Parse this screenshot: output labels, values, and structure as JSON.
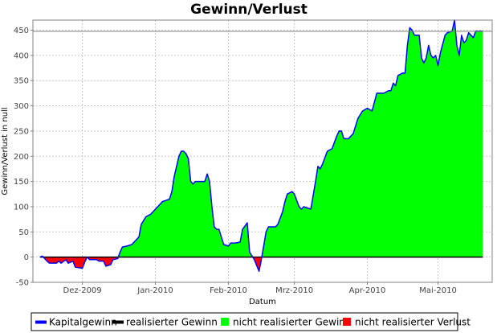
{
  "chart_data": {
    "type": "area",
    "title": "Gewinn/Verlust",
    "xlabel": "Datum",
    "ylabel": "Gewinn/Verlust in null",
    "ylim": [
      -50,
      470
    ],
    "yticks": [
      -50,
      0,
      50,
      100,
      150,
      200,
      250,
      300,
      350,
      400,
      450
    ],
    "xlim": [
      "2009-11-10",
      "2010-05-24"
    ],
    "xticks": [
      {
        "label": "Dez-2009",
        "date": "2009-12-01"
      },
      {
        "label": "Jan-2010",
        "date": "2010-01-01"
      },
      {
        "label": "Feb-2010",
        "date": "2010-02-01"
      },
      {
        "label": "Mrz-2010",
        "date": "2010-03-01"
      },
      {
        "label": "Apr-2010",
        "date": "2010-04-01"
      },
      {
        "label": "Mai-2010",
        "date": "2010-05-01"
      }
    ],
    "grid": true,
    "legend_position": "bottom",
    "legend": [
      {
        "label": "Kapitalgewinn",
        "color": "#0000ff",
        "kind": "line"
      },
      {
        "label": "realisierter Gewinn",
        "color": "#000000",
        "kind": "line"
      },
      {
        "label": "nicht realisierter Gewinn",
        "color": "#00ff00",
        "kind": "box"
      },
      {
        "label": "nicht realisierter Verlust",
        "color": "#ff0000",
        "kind": "box"
      }
    ],
    "series": [
      {
        "name": "Kapitalgewinn",
        "color": "#0000ff",
        "points": [
          [
            "2009-11-13",
            0
          ],
          [
            "2009-11-14",
            2
          ],
          [
            "2009-11-16",
            -8
          ],
          [
            "2009-11-17",
            -12
          ],
          [
            "2009-11-20",
            -12
          ],
          [
            "2009-11-21",
            -8
          ],
          [
            "2009-11-22",
            -12
          ],
          [
            "2009-11-24",
            -5
          ],
          [
            "2009-11-25",
            -12
          ],
          [
            "2009-11-27",
            -8
          ],
          [
            "2009-11-28",
            -20
          ],
          [
            "2009-12-01",
            -22
          ],
          [
            "2009-12-02",
            -10
          ],
          [
            "2009-12-03",
            0
          ],
          [
            "2009-12-04",
            -5
          ],
          [
            "2009-12-07",
            -5
          ],
          [
            "2009-12-08",
            -8
          ],
          [
            "2009-12-10",
            -8
          ],
          [
            "2009-12-11",
            -18
          ],
          [
            "2009-12-13",
            -15
          ],
          [
            "2009-12-14",
            -5
          ],
          [
            "2009-12-16",
            -3
          ],
          [
            "2009-12-17",
            10
          ],
          [
            "2009-12-18",
            20
          ],
          [
            "2009-12-20",
            22
          ],
          [
            "2009-12-22",
            25
          ],
          [
            "2009-12-25",
            40
          ],
          [
            "2009-12-26",
            65
          ],
          [
            "2009-12-28",
            80
          ],
          [
            "2009-12-30",
            85
          ],
          [
            "2010-01-01",
            95
          ],
          [
            "2010-01-02",
            100
          ],
          [
            "2010-01-04",
            110
          ],
          [
            "2010-01-07",
            115
          ],
          [
            "2010-01-08",
            130
          ],
          [
            "2010-01-09",
            160
          ],
          [
            "2010-01-10",
            180
          ],
          [
            "2010-01-11",
            200
          ],
          [
            "2010-01-12",
            210
          ],
          [
            "2010-01-13",
            210
          ],
          [
            "2010-01-14",
            205
          ],
          [
            "2010-01-15",
            195
          ],
          [
            "2010-01-16",
            150
          ],
          [
            "2010-01-17",
            145
          ],
          [
            "2010-01-18",
            150
          ],
          [
            "2010-01-22",
            150
          ],
          [
            "2010-01-23",
            165
          ],
          [
            "2010-01-24",
            150
          ],
          [
            "2010-01-25",
            100
          ],
          [
            "2010-01-26",
            60
          ],
          [
            "2010-01-27",
            55
          ],
          [
            "2010-01-28",
            55
          ],
          [
            "2010-01-29",
            40
          ],
          [
            "2010-01-30",
            25
          ],
          [
            "2010-02-01",
            22
          ],
          [
            "2010-02-02",
            28
          ],
          [
            "2010-02-04",
            28
          ],
          [
            "2010-02-06",
            30
          ],
          [
            "2010-02-07",
            55
          ],
          [
            "2010-02-09",
            68
          ],
          [
            "2010-02-10",
            10
          ],
          [
            "2010-02-12",
            -5
          ],
          [
            "2010-02-14",
            -28
          ],
          [
            "2010-02-15",
            -5
          ],
          [
            "2010-02-17",
            50
          ],
          [
            "2010-02-18",
            60
          ],
          [
            "2010-02-21",
            60
          ],
          [
            "2010-02-22",
            65
          ],
          [
            "2010-02-24",
            90
          ],
          [
            "2010-02-25",
            110
          ],
          [
            "2010-02-26",
            125
          ],
          [
            "2010-02-28",
            130
          ],
          [
            "2010-03-01",
            125
          ],
          [
            "2010-03-03",
            100
          ],
          [
            "2010-03-04",
            95
          ],
          [
            "2010-03-05",
            100
          ],
          [
            "2010-03-08",
            95
          ],
          [
            "2010-03-10",
            150
          ],
          [
            "2010-03-11",
            180
          ],
          [
            "2010-03-12",
            175
          ],
          [
            "2010-03-13",
            185
          ],
          [
            "2010-03-15",
            210
          ],
          [
            "2010-03-17",
            215
          ],
          [
            "2010-03-19",
            240
          ],
          [
            "2010-03-20",
            250
          ],
          [
            "2010-03-21",
            250
          ],
          [
            "2010-03-22",
            235
          ],
          [
            "2010-03-24",
            235
          ],
          [
            "2010-03-26",
            245
          ],
          [
            "2010-03-28",
            275
          ],
          [
            "2010-03-30",
            290
          ],
          [
            "2010-04-01",
            295
          ],
          [
            "2010-04-03",
            290
          ],
          [
            "2010-04-05",
            325
          ],
          [
            "2010-04-08",
            325
          ],
          [
            "2010-04-10",
            330
          ],
          [
            "2010-04-11",
            330
          ],
          [
            "2010-04-12",
            345
          ],
          [
            "2010-04-13",
            340
          ],
          [
            "2010-04-14",
            360
          ],
          [
            "2010-04-16",
            365
          ],
          [
            "2010-04-17",
            365
          ],
          [
            "2010-04-18",
            420
          ],
          [
            "2010-04-19",
            455
          ],
          [
            "2010-04-20",
            450
          ],
          [
            "2010-04-21",
            440
          ],
          [
            "2010-04-23",
            440
          ],
          [
            "2010-04-24",
            395
          ],
          [
            "2010-04-25",
            385
          ],
          [
            "2010-04-26",
            395
          ],
          [
            "2010-04-27",
            420
          ],
          [
            "2010-04-28",
            400
          ],
          [
            "2010-04-29",
            395
          ],
          [
            "2010-04-30",
            400
          ],
          [
            "2010-05-01",
            380
          ],
          [
            "2010-05-02",
            405
          ],
          [
            "2010-05-04",
            440
          ],
          [
            "2010-05-05",
            445
          ],
          [
            "2010-05-07",
            448
          ],
          [
            "2010-05-08",
            470
          ],
          [
            "2010-05-09",
            420
          ],
          [
            "2010-05-10",
            400
          ],
          [
            "2010-05-11",
            440
          ],
          [
            "2010-05-12",
            425
          ],
          [
            "2010-05-13",
            430
          ],
          [
            "2010-05-14",
            445
          ],
          [
            "2010-05-15",
            440
          ],
          [
            "2010-05-16",
            435
          ],
          [
            "2010-05-17",
            448
          ],
          [
            "2010-05-19",
            448
          ],
          [
            "2010-05-20",
            448
          ]
        ]
      },
      {
        "name": "realisierter Gewinn",
        "color": "#000000",
        "points": [
          [
            "2009-11-13",
            0
          ],
          [
            "2010-05-20",
            0
          ]
        ]
      }
    ]
  }
}
